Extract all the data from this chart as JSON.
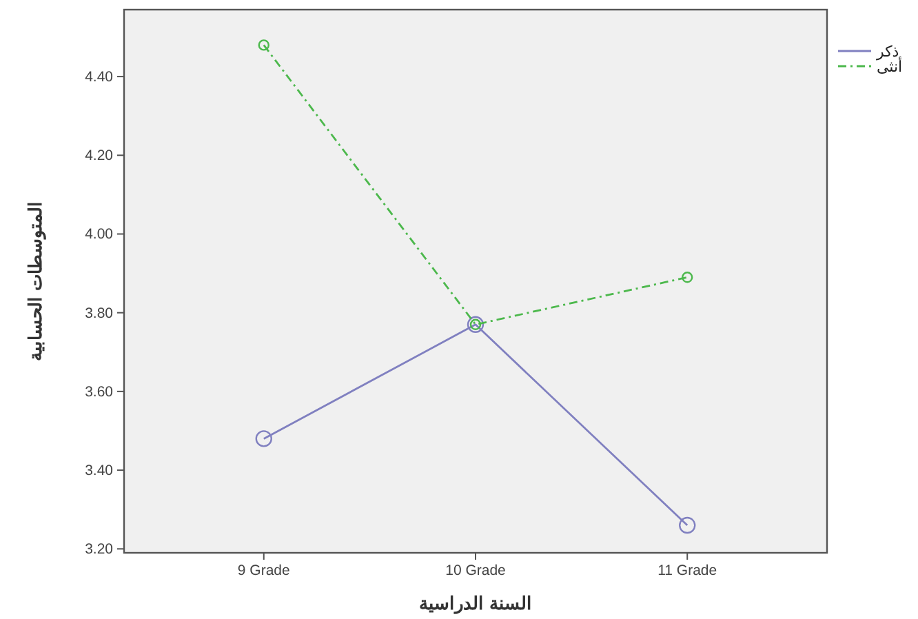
{
  "chart_data": {
    "type": "line",
    "xlabel": "السنة الدراسية",
    "ylabel": "المتوسطات الحسابية",
    "categories": [
      "9 Grade",
      "10 Grade",
      "11 Grade"
    ],
    "series": [
      {
        "name": "ذكر",
        "color": "#8080c0",
        "values": [
          3.48,
          3.77,
          3.26
        ],
        "line_style": "solid"
      },
      {
        "name": "أنثى",
        "color": "#4cb84c",
        "values": [
          4.48,
          3.77,
          3.89
        ],
        "line_style": "dashed"
      }
    ],
    "ylim": [
      3.19,
      4.57
    ],
    "yticks": [
      {
        "value": 3.2,
        "label": "3.20"
      },
      {
        "value": 3.4,
        "label": "3.40"
      },
      {
        "value": 3.6,
        "label": "3.60"
      },
      {
        "value": 3.8,
        "label": "3.80"
      },
      {
        "value": 4.0,
        "label": "4.00"
      },
      {
        "value": 4.2,
        "label": "4.20"
      },
      {
        "value": 4.4,
        "label": "4.40"
      }
    ],
    "grid": false,
    "legend": "top right",
    "marker": "circle"
  }
}
